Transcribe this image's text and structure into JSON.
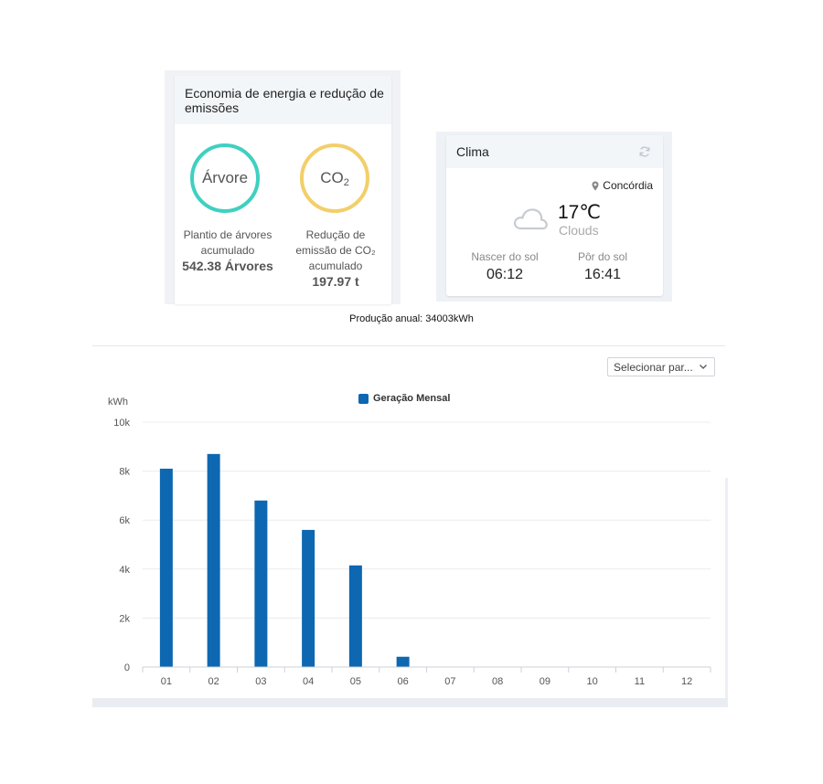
{
  "energy": {
    "title": "Economia de energia e redução de emissões",
    "trees": {
      "circle_label": "Árvore",
      "label_line1": "Plantio de árvores",
      "label_line2": "acumulado",
      "value": "542.38 Árvores"
    },
    "co2": {
      "circle_label": "CO",
      "circle_sub": "2",
      "label_line1": "Redução de",
      "label_line2": "emissão de CO₂",
      "label_line3": "acumulado",
      "value": "197.97 t"
    },
    "colors": {
      "trees_ring": "#3fd0c0",
      "co2_ring": "#f2cf6a"
    }
  },
  "weather": {
    "title": "Clima",
    "location": "Concórdia",
    "temperature": "17℃",
    "condition": "Clouds",
    "sunrise_label": "Nascer do sol",
    "sunrise_time": "06:12",
    "sunset_label": "Pôr do sol",
    "sunset_time": "16:41",
    "icons": {
      "refresh": "refresh-icon",
      "location": "map-pin-icon",
      "condition": "cloud-icon"
    }
  },
  "annual_production": "Produção anual: 34003kWh",
  "period_select": {
    "value": "Selecionar par..."
  },
  "chart_data": {
    "type": "bar",
    "legend": "Geração Mensal",
    "unit_label": "kWh",
    "categories": [
      "01",
      "02",
      "03",
      "04",
      "05",
      "06",
      "07",
      "08",
      "09",
      "10",
      "11",
      "12"
    ],
    "values": [
      8100,
      8700,
      6800,
      5600,
      4150,
      420,
      0,
      0,
      0,
      0,
      0,
      0
    ],
    "ylim": [
      0,
      10000
    ],
    "yticks": [
      0,
      2000,
      4000,
      6000,
      8000,
      10000
    ],
    "ytick_labels": [
      "0",
      "2k",
      "4k",
      "6k",
      "8k",
      "10k"
    ],
    "bar_color": "#0d67b1",
    "grid": true,
    "legend_position": "top-center"
  }
}
